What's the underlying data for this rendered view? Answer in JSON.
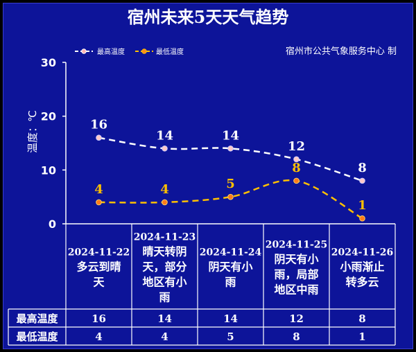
{
  "title": "宿州未来5天天气趋势",
  "credit": "宿州市公共气象服务中心 制",
  "colors": {
    "background": "#0d1499",
    "high": "#ffffff",
    "low": "#ffc000",
    "text": "#ffffff"
  },
  "chart_data": {
    "type": "line",
    "ylabel": "温度：℃",
    "ylim": [
      0,
      30
    ],
    "yticks": [
      "0",
      "10",
      "20",
      "30"
    ],
    "legend_position": "top-left",
    "categories": [
      "2024-11-22 多云到晴天",
      "2024-11-23 晴天转阴天，部分地区有小雨",
      "2024-11-24 阴天有小雨",
      "2024-11-25 阴天有小雨，局部地区中雨",
      "2024-11-26 小雨渐止转多云"
    ],
    "series": [
      {
        "name": "最高温度",
        "values": [
          16,
          14,
          14,
          12,
          8
        ],
        "color": "#ffffff",
        "style": "dashed"
      },
      {
        "name": "最低温度",
        "values": [
          4,
          4,
          5,
          8,
          1
        ],
        "color": "#ffc000",
        "style": "dashed"
      }
    ]
  },
  "days": [
    {
      "date": "2024-11-22",
      "lines": [
        "多云到晴",
        "天"
      ]
    },
    {
      "date": "2024-11-23",
      "lines": [
        "晴天转阴",
        "天，部分",
        "地区有小",
        "雨"
      ]
    },
    {
      "date": "2024-11-24",
      "lines": [
        "阴天有小",
        "雨"
      ]
    },
    {
      "date": "2024-11-25",
      "lines": [
        "阴天有小",
        "雨，局部",
        "地区中雨"
      ]
    },
    {
      "date": "2024-11-26",
      "lines": [
        "小雨渐止",
        "转多云"
      ]
    }
  ],
  "table": {
    "row_labels": [
      "最高温度",
      "最低温度"
    ],
    "high": [
      "16",
      "14",
      "14",
      "12",
      "8"
    ],
    "low": [
      "4",
      "4",
      "5",
      "8",
      "1"
    ]
  }
}
